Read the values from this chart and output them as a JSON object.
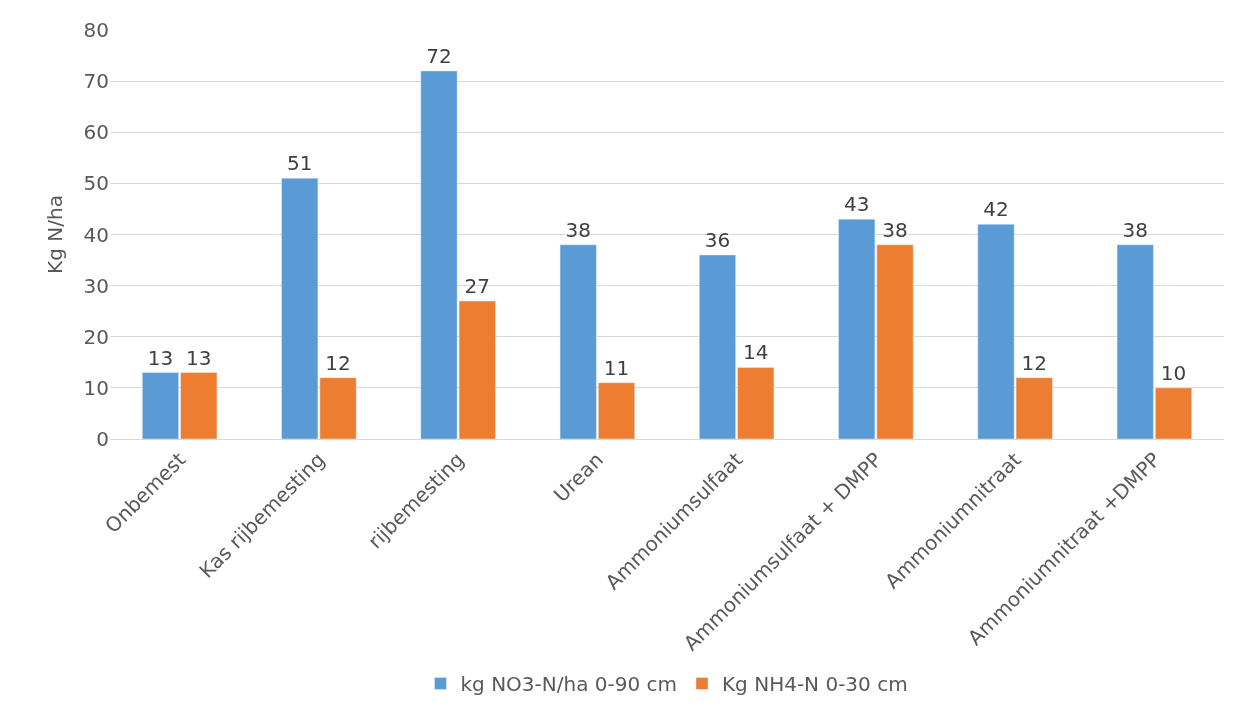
{
  "chart_data": {
    "type": "bar",
    "ylabel": "Kg N/ha",
    "categories": [
      "Onbemest",
      "Kas rijbemesting",
      "rijbemesting",
      "Urean",
      "Ammoniumsulfaat",
      "Ammoniumsulfaat + DMPP",
      "Ammoniumnitraat",
      "Ammoniumnitraat +DMPP"
    ],
    "series": [
      {
        "name": "kg NO3-N/ha 0-90 cm",
        "color": "#5b9bd5",
        "values": [
          13,
          51,
          72,
          38,
          36,
          43,
          42,
          38
        ]
      },
      {
        "name": "Kg NH4-N 0-30 cm",
        "color": "#ed7d31",
        "values": [
          13,
          12,
          27,
          11,
          14,
          38,
          12,
          10
        ]
      }
    ],
    "ylim": [
      0,
      80
    ],
    "yticks": [
      0,
      10,
      20,
      30,
      40,
      50,
      60,
      70,
      80
    ],
    "grid": "y",
    "legend": "bottom",
    "data_labels": true
  }
}
